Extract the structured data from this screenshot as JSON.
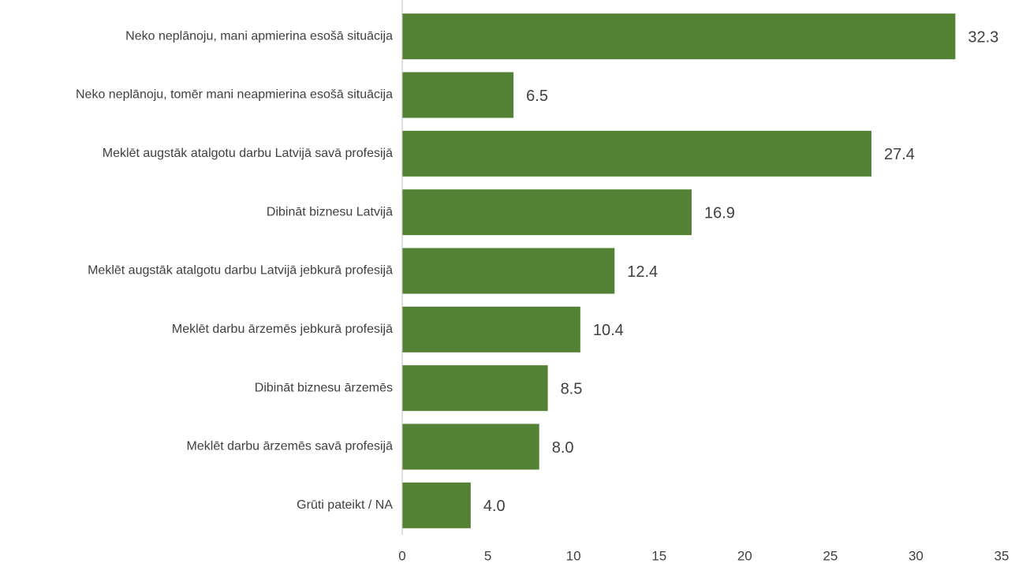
{
  "chart_data": {
    "type": "barh",
    "categories": [
      "Neko neplānoju, mani apmierina esošā situācija",
      "Neko neplānoju, tomēr mani neapmierina esošā situācija",
      "Meklēt augstāk atalgotu darbu Latvijā savā profesijā",
      "Dibināt biznesu Latvijā",
      "Meklēt augstāk atalgotu darbu Latvijā jebkurā profesijā",
      "Meklēt darbu ārzemēs jebkurā profesijā",
      "Dibināt biznesu ārzemēs",
      "Meklēt darbu ārzemēs savā profesijā",
      "Grūti pateikt / NA"
    ],
    "values": [
      32.3,
      6.5,
      27.4,
      16.9,
      12.4,
      10.4,
      8.5,
      8,
      4
    ],
    "value_labels": [
      "32.3",
      "6.5",
      "27.4",
      "16.9",
      "12.4",
      "10.4",
      "8.5",
      "8.0",
      "4.0"
    ],
    "color": "#548235",
    "xlim": [
      0,
      35
    ],
    "xticks": [
      0,
      5,
      10,
      15,
      20,
      25,
      30,
      35
    ],
    "grid": false
  }
}
